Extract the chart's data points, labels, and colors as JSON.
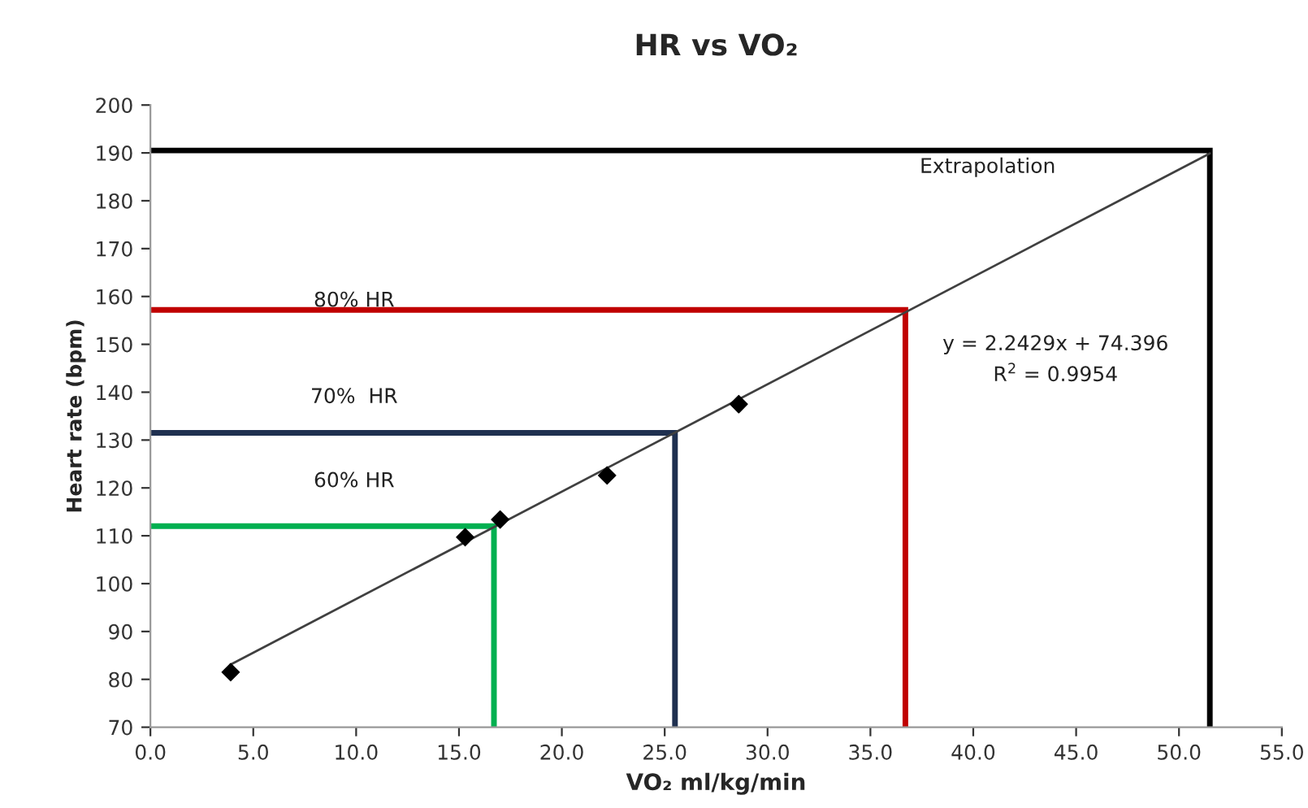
{
  "chart_data": {
    "type": "scatter",
    "title": "HR vs VO₂",
    "xlabel": "VO₂ ml/kg/min",
    "ylabel": "Heart rate (bpm)",
    "xlim": [
      0,
      55
    ],
    "ylim": [
      70,
      200
    ],
    "xticks": [
      {
        "value": 0,
        "label": "0.0"
      },
      {
        "value": 5,
        "label": "5.0"
      },
      {
        "value": 10,
        "label": "10.0"
      },
      {
        "value": 15,
        "label": "15.0"
      },
      {
        "value": 20,
        "label": "20.0"
      },
      {
        "value": 25,
        "label": "25.0"
      },
      {
        "value": 30,
        "label": "30.0"
      },
      {
        "value": 35,
        "label": "35.0"
      },
      {
        "value": 40,
        "label": "40.0"
      },
      {
        "value": 45,
        "label": "45.0"
      },
      {
        "value": 50,
        "label": "50.0"
      },
      {
        "value": 55,
        "label": "55.0"
      }
    ],
    "yticks": [
      70,
      80,
      90,
      100,
      110,
      120,
      130,
      140,
      150,
      160,
      170,
      180,
      190,
      200
    ],
    "grid": false,
    "legend": false,
    "series": [
      {
        "marker": "diamond",
        "color": "#000000",
        "x": [
          3.9,
          15.3,
          17.0,
          22.2,
          28.6
        ],
        "values": [
          81.5,
          109.7,
          113.4,
          122.6,
          137.5
        ]
      },
      {
        "type": "line",
        "marker": "none",
        "color": "#404040",
        "x": [
          3.9,
          51.5
        ],
        "values": [
          83.1,
          189.9
        ]
      },
      {
        "type": "line",
        "marker": "none",
        "color": "#00b050",
        "x": [
          0,
          16.7,
          16.7
        ],
        "values": [
          112,
          112,
          70
        ]
      },
      {
        "type": "line",
        "marker": "none",
        "color": "#1f3050",
        "x": [
          0,
          25.5,
          25.5
        ],
        "values": [
          131.5,
          131.5,
          70
        ]
      },
      {
        "type": "line",
        "marker": "none",
        "color": "#c00000",
        "x": [
          0,
          36.7,
          36.7
        ],
        "values": [
          157.2,
          157.2,
          70
        ]
      },
      {
        "type": "line",
        "marker": "none",
        "color": "#000000",
        "x": [
          0,
          51.5,
          51.5
        ],
        "values": [
          190.5,
          190.5,
          70
        ]
      }
    ],
    "annotations": [
      "Extrapolation",
      "80% HR",
      "70%  HR",
      "60% HR",
      "y = 2.2429x + 74.396",
      "R$^{2}$ = 0.9954"
    ]
  }
}
